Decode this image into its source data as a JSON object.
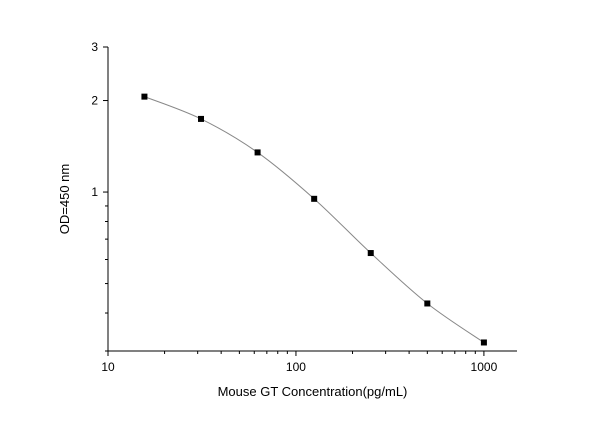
{
  "chart_data": {
    "type": "scatter",
    "xlabel": "Mouse GT  Concentration(pg/mL)",
    "ylabel": "OD=450 nm",
    "x_scale": "log",
    "y_scale": "log",
    "xlim": [
      10,
      1500
    ],
    "ylim": [
      0.3,
      3
    ],
    "x_ticks": [
      {
        "value": 10,
        "label": "10"
      },
      {
        "value": 100,
        "label": "100"
      },
      {
        "value": 1000,
        "label": "1000"
      }
    ],
    "y_ticks": [
      {
        "value": 1,
        "label": "1"
      },
      {
        "value": 2,
        "label": "2"
      },
      {
        "value": 3,
        "label": "3"
      }
    ],
    "grid": false,
    "marker": "square",
    "fitted_curve": true,
    "colors": {
      "points": "#000000",
      "curve": "#888888",
      "axis": "#000000"
    },
    "series": [
      {
        "x": [
          15.625,
          31.25,
          62.5,
          125,
          250,
          500,
          1000
        ],
        "y": [
          2.06,
          1.74,
          1.35,
          0.95,
          0.63,
          0.43,
          0.32
        ]
      }
    ]
  }
}
